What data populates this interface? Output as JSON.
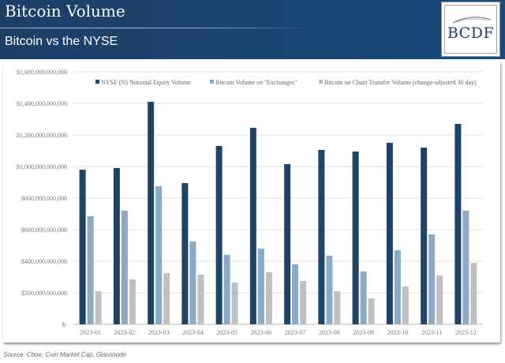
{
  "header": {
    "title": "Bitcoin Volume",
    "subtitle": "Bitcoin vs the NYSE",
    "logo_text": "BCDF"
  },
  "source": "Source: Cboe, Coin Market Cap, Glassnode",
  "colors": {
    "header_bg": "#1d3f66",
    "nyse": "#1f4466",
    "exchanges": "#8aaac6",
    "chain": "#c0c0c0"
  },
  "chart_data": {
    "type": "bar",
    "title": "",
    "xlabel": "",
    "ylabel": "",
    "ylim": [
      0,
      1600000000000
    ],
    "grid": true,
    "legend_position": "top",
    "yticks": [
      0,
      200000000000,
      400000000000,
      600000000000,
      800000000000,
      1000000000000,
      1200000000000,
      1400000000000,
      1600000000000
    ],
    "ytick_labels": [
      "$-",
      "$200,000,000,000",
      "$400,000,000,000",
      "$600,000,000,000",
      "$800,000,000,000",
      "$1,000,000,000,000",
      "$1,200,000,000,000",
      "$1,400,000,000,000",
      "$1,600,000,000,000"
    ],
    "categories": [
      "2023-01",
      "2023-02",
      "2023-03",
      "2023-04",
      "2023-05",
      "2023-06",
      "2023-07",
      "2023-08",
      "2023-09",
      "2023-10",
      "2023-11",
      "2023-12"
    ],
    "series": [
      {
        "name": "NYSE (N) Notional Equity Volume",
        "color": "#1f4466",
        "values": [
          980000000000,
          990000000000,
          1410000000000,
          895000000000,
          1130000000000,
          1245000000000,
          1015000000000,
          1105000000000,
          1095000000000,
          1150000000000,
          1120000000000,
          1270000000000
        ]
      },
      {
        "name": "Bitcoin Volume on \"Exchanges\"",
        "color": "#8aaac6",
        "values": [
          685000000000,
          720000000000,
          875000000000,
          525000000000,
          440000000000,
          480000000000,
          380000000000,
          435000000000,
          335000000000,
          470000000000,
          570000000000,
          720000000000
        ]
      },
      {
        "name": "Bitcoin on Chain Transfer Volume (change-adjusted 30 day)",
        "color": "#c0c0c0",
        "values": [
          210000000000,
          285000000000,
          325000000000,
          315000000000,
          265000000000,
          330000000000,
          275000000000,
          210000000000,
          165000000000,
          240000000000,
          310000000000,
          390000000000
        ]
      }
    ]
  }
}
